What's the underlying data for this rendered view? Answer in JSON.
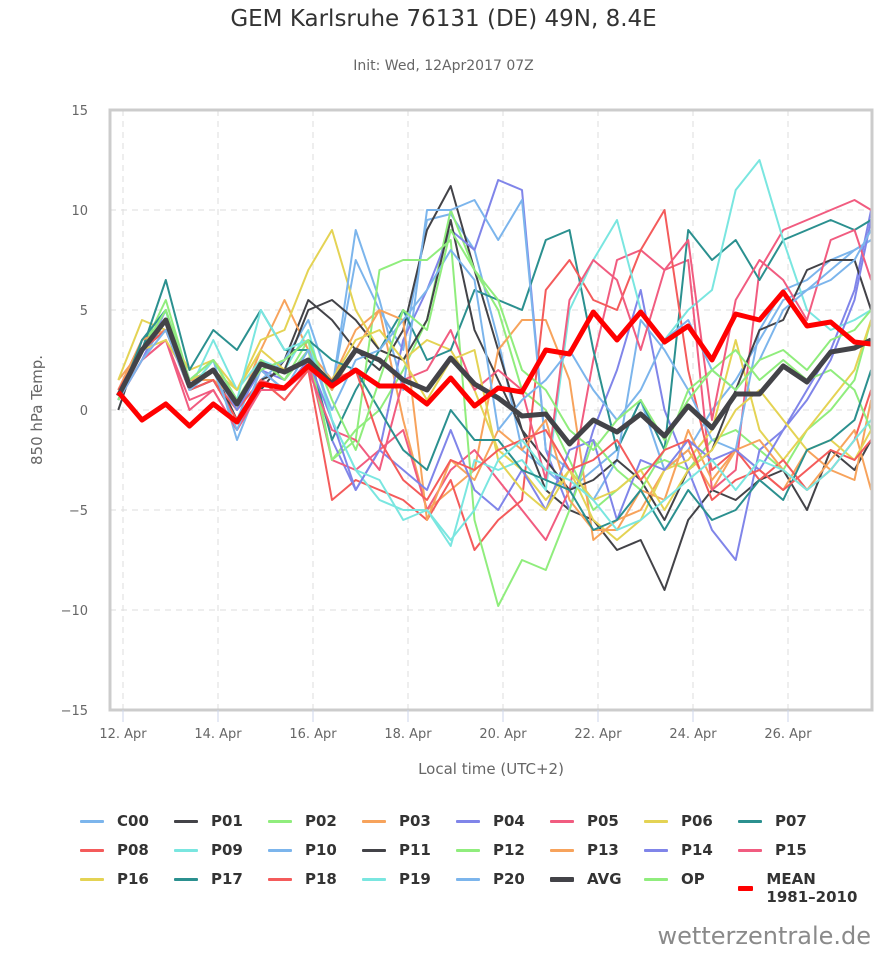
{
  "page": {
    "title": "GEM Karlsruhe 76131 (DE) 49N, 8.4E",
    "subtitle": "Init: Wed, 12Apr2017 07Z",
    "credit": "wetterzentrale.de"
  },
  "chart_data": {
    "type": "line",
    "title": "GEM Karlsruhe 76131 (DE) 49N, 8.4E",
    "subtitle": "Init: Wed, 12Apr2017 07Z",
    "xlabel": "Local time (UTC+2)",
    "ylabel": "850 hPa Temp.",
    "ylim": [
      -15,
      15
    ],
    "xlim_days_april": [
      11.7,
      27.85
    ],
    "grid": true,
    "legend_position": "bottom",
    "yticks": [
      15,
      10,
      5,
      0,
      -5,
      -10,
      -15
    ],
    "ytick_labels": [
      "15",
      "10",
      "5",
      "0",
      "−5",
      "−10",
      "−15"
    ],
    "xticks": [
      12,
      14,
      16,
      18,
      20,
      22,
      24,
      26
    ],
    "xtick_labels": [
      "12. Apr",
      "14. Apr",
      "16. Apr",
      "18. Apr",
      "20. Apr",
      "22. Apr",
      "24. Apr",
      "26. Apr"
    ],
    "x_days": [
      11.9,
      12.4,
      12.9,
      13.4,
      13.9,
      14.4,
      14.9,
      15.4,
      15.9,
      16.4,
      16.9,
      17.4,
      17.9,
      18.4,
      18.9,
      19.4,
      19.9,
      20.4,
      20.9,
      21.4,
      21.9,
      22.4,
      22.9,
      23.4,
      23.9,
      24.4,
      24.9,
      25.4,
      25.9,
      26.4,
      26.9,
      27.4,
      27.75
    ],
    "series": [
      {
        "name": "C00",
        "color": "#7cb5ec",
        "width": 2,
        "values": [
          0.5,
          3.0,
          4.0,
          1.5,
          2.0,
          -0.5,
          2.5,
          1.5,
          3.0,
          1.0,
          7.5,
          5.0,
          3.0,
          9.5,
          9.8,
          8.0,
          3.5,
          -2.0,
          -3.0,
          -4.0,
          -3.0,
          -2.0,
          0.5,
          -3.0,
          -2.0,
          0.0,
          1.5,
          3.5,
          5.5,
          6.0,
          7.0,
          8.0,
          8.5
        ]
      },
      {
        "name": "P01",
        "color": "#434348",
        "width": 2,
        "values": [
          0.0,
          3.5,
          4.5,
          1.5,
          2.0,
          -0.5,
          1.0,
          2.5,
          5.5,
          4.5,
          3.0,
          2.0,
          4.0,
          9.0,
          11.2,
          7.0,
          3.0,
          -1.0,
          -4.0,
          -5.0,
          -5.5,
          -7.0,
          -6.5,
          -9.0,
          -5.5,
          -4.0,
          -4.5,
          -3.5,
          -3.0,
          -5.0,
          -2.0,
          -3.0,
          -1.5
        ]
      },
      {
        "name": "P02",
        "color": "#90ed7d",
        "width": 2,
        "values": [
          0.5,
          3.0,
          5.5,
          1.5,
          2.5,
          0.5,
          2.5,
          1.5,
          3.5,
          -2.5,
          -1.0,
          0.0,
          2.0,
          4.5,
          10.0,
          7.0,
          5.0,
          1.0,
          0.0,
          -2.5,
          -5.0,
          -4.0,
          -3.0,
          -2.5,
          -3.0,
          -1.5,
          -1.0,
          -2.0,
          -3.0,
          -1.0,
          0.0,
          1.5,
          4.5
        ]
      },
      {
        "name": "P03",
        "color": "#f7a35c",
        "width": 2,
        "values": [
          1.5,
          3.0,
          4.0,
          1.5,
          2.0,
          0.0,
          3.0,
          5.5,
          3.0,
          1.5,
          4.0,
          5.0,
          -0.5,
          -5.0,
          -4.0,
          -3.0,
          3.0,
          4.5,
          4.5,
          1.5,
          -6.5,
          -5.5,
          -5.0,
          -3.0,
          -2.0,
          -4.0,
          -2.0,
          -3.0,
          -4.0,
          -2.0,
          -3.0,
          -3.5,
          0.5
        ]
      },
      {
        "name": "P04",
        "color": "#8085e9",
        "width": 2,
        "values": [
          0.5,
          3.5,
          5.0,
          1.5,
          2.0,
          0.5,
          2.0,
          1.5,
          3.0,
          -1.5,
          -4.0,
          -2.0,
          3.5,
          6.0,
          9.0,
          8.0,
          11.5,
          11.0,
          -2.0,
          -5.0,
          -1.0,
          2.0,
          6.0,
          0.0,
          -3.0,
          -6.0,
          -7.5,
          -2.0,
          -1.0,
          1.0,
          3.0,
          6.0,
          10.0
        ]
      },
      {
        "name": "P05",
        "color": "#f15c80",
        "width": 2,
        "values": [
          0.5,
          2.5,
          3.5,
          0.0,
          1.0,
          -1.0,
          1.5,
          1.0,
          2.5,
          -2.5,
          -3.0,
          -2.0,
          -1.0,
          -5.0,
          -3.0,
          -2.0,
          -3.5,
          -5.0,
          -6.5,
          -4.0,
          2.5,
          7.5,
          8.0,
          7.0,
          7.5,
          -4.0,
          -3.0,
          7.0,
          9.0,
          9.5,
          10.0,
          10.5,
          10.0
        ]
      },
      {
        "name": "P06",
        "color": "#e4d354",
        "width": 2,
        "values": [
          1.5,
          4.5,
          4.0,
          2.0,
          2.5,
          1.0,
          3.5,
          4.0,
          7.0,
          9.0,
          5.0,
          3.0,
          2.5,
          3.5,
          3.0,
          1.0,
          -2.0,
          -3.0,
          -4.5,
          -3.0,
          -5.5,
          -6.5,
          -5.5,
          -3.0,
          -2.5,
          -1.0,
          3.5,
          -1.0,
          -2.5,
          -1.0,
          0.5,
          2.0,
          4.5
        ]
      },
      {
        "name": "P07",
        "color": "#2b908f",
        "width": 2,
        "values": [
          0.5,
          3.0,
          6.5,
          2.0,
          4.0,
          3.0,
          5.0,
          3.0,
          3.0,
          -1.5,
          1.0,
          3.0,
          5.0,
          2.5,
          3.0,
          6.0,
          5.5,
          5.0,
          8.5,
          9.0,
          3.0,
          -2.0,
          0.5,
          -2.0,
          9.0,
          7.5,
          8.5,
          6.5,
          8.5,
          9.0,
          9.5,
          9.0,
          9.5
        ]
      },
      {
        "name": "P08",
        "color": "#f45b5b",
        "width": 2,
        "values": [
          1.0,
          3.5,
          4.0,
          1.0,
          1.5,
          0.0,
          1.5,
          0.5,
          2.0,
          -4.5,
          -3.5,
          -4.0,
          -4.5,
          -5.5,
          -3.5,
          -7.0,
          -5.5,
          -4.5,
          6.0,
          7.5,
          5.5,
          5.0,
          8.0,
          10.0,
          2.0,
          -3.0,
          -2.0,
          -3.5,
          -2.5,
          -4.0,
          -3.0,
          -1.5,
          1.0
        ]
      },
      {
        "name": "P09",
        "color": "#7ae6e0",
        "width": 2,
        "values": [
          0.5,
          3.0,
          4.5,
          1.0,
          3.5,
          1.0,
          2.5,
          2.0,
          4.0,
          -0.5,
          -3.0,
          -4.5,
          -5.0,
          -5.0,
          -6.8,
          -2.5,
          -3.0,
          -2.5,
          -4.0,
          5.0,
          7.5,
          9.5,
          5.0,
          3.5,
          5.0,
          6.0,
          11.0,
          12.5,
          8.5,
          5.0,
          4.0,
          4.5,
          5.0
        ]
      },
      {
        "name": "P10",
        "color": "#7cb5ec",
        "width": 2,
        "values": [
          0.5,
          2.5,
          4.5,
          1.5,
          2.5,
          -1.5,
          1.5,
          2.5,
          4.5,
          1.0,
          9.0,
          5.5,
          1.0,
          10.0,
          10.0,
          10.5,
          8.5,
          10.5,
          -2.0,
          -3.0,
          -4.5,
          -2.5,
          4.5,
          3.0,
          1.0,
          -1.5,
          -2.0,
          4.0,
          6.0,
          6.5,
          7.5,
          8.0,
          8.5
        ]
      },
      {
        "name": "P11",
        "color": "#434348",
        "width": 2,
        "values": [
          0.5,
          3.0,
          4.0,
          1.0,
          1.5,
          -0.5,
          1.5,
          2.0,
          5.0,
          5.5,
          4.5,
          3.0,
          2.5,
          4.5,
          9.5,
          4.0,
          1.5,
          -1.0,
          -2.5,
          -4.0,
          -3.5,
          -2.5,
          -3.5,
          -5.5,
          -3.0,
          -2.0,
          1.0,
          4.0,
          4.5,
          7.0,
          7.5,
          7.5,
          5.0
        ]
      },
      {
        "name": "P12",
        "color": "#90ed7d",
        "width": 2,
        "values": [
          0.5,
          3.0,
          4.5,
          1.0,
          2.0,
          0.0,
          2.5,
          1.5,
          3.0,
          -2.5,
          -1.5,
          7.0,
          7.5,
          7.5,
          8.5,
          -5.5,
          -9.8,
          -7.5,
          -8.0,
          -5.0,
          -1.5,
          -3.0,
          -4.0,
          -2.0,
          1.0,
          2.0,
          3.0,
          1.5,
          2.5,
          1.5,
          2.0,
          1.0,
          -1.0
        ]
      },
      {
        "name": "P13",
        "color": "#f7a35c",
        "width": 2,
        "values": [
          1.0,
          3.5,
          4.0,
          1.5,
          1.5,
          0.5,
          2.0,
          1.0,
          2.5,
          1.0,
          3.0,
          5.0,
          4.5,
          -5.5,
          -2.5,
          -3.5,
          -1.0,
          -2.0,
          -0.5,
          -4.5,
          -6.0,
          -6.0,
          -4.0,
          -4.5,
          -1.0,
          -3.5,
          -2.0,
          -1.5,
          -3.0,
          -4.0,
          -2.5,
          -1.0,
          -4.0
        ]
      },
      {
        "name": "P14",
        "color": "#8085e9",
        "width": 2,
        "values": [
          0.5,
          2.5,
          5.0,
          1.0,
          2.0,
          0.0,
          2.0,
          1.0,
          2.5,
          -0.5,
          -4.0,
          -2.0,
          -3.0,
          -4.0,
          -1.0,
          -4.0,
          -5.0,
          -3.0,
          -5.0,
          -2.0,
          -1.5,
          -5.5,
          -2.5,
          -3.0,
          -1.5,
          -2.5,
          -2.0,
          -3.0,
          -1.0,
          0.5,
          2.5,
          5.5,
          9.5
        ]
      },
      {
        "name": "P15",
        "color": "#f15c80",
        "width": 2,
        "values": [
          0.5,
          2.5,
          3.5,
          0.5,
          1.0,
          -1.0,
          1.0,
          1.0,
          2.0,
          -1.0,
          -1.5,
          -3.0,
          1.5,
          2.0,
          4.0,
          1.0,
          2.0,
          1.0,
          -3.5,
          5.5,
          7.5,
          6.5,
          3.0,
          7.0,
          8.5,
          -0.5,
          5.5,
          7.5,
          6.5,
          4.5,
          8.5,
          9.0,
          6.5
        ]
      },
      {
        "name": "P16",
        "color": "#e4d354",
        "width": 2,
        "values": [
          1.0,
          3.0,
          3.5,
          1.5,
          2.0,
          1.0,
          3.0,
          2.0,
          2.5,
          1.5,
          3.5,
          4.0,
          2.5,
          0.5,
          2.5,
          3.0,
          -2.5,
          -4.0,
          -5.0,
          -3.0,
          -4.5,
          -4.0,
          -3.0,
          -5.0,
          -3.0,
          -2.0,
          0.0,
          1.0,
          -0.5,
          -2.0,
          -1.5,
          -2.5,
          -1.0
        ]
      },
      {
        "name": "P17",
        "color": "#2b908f",
        "width": 2,
        "values": [
          0.5,
          3.5,
          5.0,
          1.0,
          2.5,
          0.5,
          2.0,
          2.5,
          3.5,
          2.5,
          2.0,
          0.0,
          -2.0,
          -3.0,
          0.0,
          -1.5,
          -1.5,
          -3.0,
          -3.5,
          -4.0,
          -6.0,
          -5.5,
          -4.0,
          -6.0,
          -4.0,
          -5.5,
          -5.0,
          -3.5,
          -4.5,
          -2.0,
          -1.5,
          -0.5,
          2.0
        ]
      },
      {
        "name": "P18",
        "color": "#f45b5b",
        "width": 2,
        "values": [
          1.0,
          3.0,
          4.0,
          1.0,
          1.5,
          -0.5,
          1.5,
          0.5,
          2.0,
          1.5,
          2.0,
          -1.5,
          -3.5,
          -4.5,
          -2.5,
          -3.0,
          -2.0,
          -1.5,
          -1.0,
          -3.0,
          -2.5,
          -1.5,
          -3.5,
          -2.0,
          -1.5,
          -4.5,
          -3.5,
          -3.0,
          -4.0,
          -3.0,
          -2.0,
          -2.5,
          -1.5
        ]
      },
      {
        "name": "P19",
        "color": "#7ae6e0",
        "width": 2,
        "values": [
          0.5,
          3.0,
          5.0,
          1.0,
          2.5,
          0.5,
          5.0,
          3.0,
          3.5,
          -0.5,
          -3.0,
          -3.5,
          -5.5,
          -5.0,
          -6.5,
          -5.0,
          -2.5,
          -1.5,
          -3.0,
          -3.5,
          -4.5,
          -6.0,
          -5.5,
          -4.5,
          -3.5,
          -2.5,
          -4.0,
          -2.5,
          -3.0,
          -4.0,
          -3.0,
          -1.5,
          -0.5
        ]
      },
      {
        "name": "P20",
        "color": "#7cb5ec",
        "width": 2,
        "values": [
          0.5,
          2.5,
          4.0,
          1.0,
          2.0,
          -1.0,
          2.0,
          1.0,
          3.0,
          0.0,
          2.5,
          3.0,
          4.5,
          6.0,
          8.0,
          6.5,
          -1.0,
          0.5,
          1.5,
          3.0,
          1.0,
          -0.5,
          1.0,
          3.5,
          4.5,
          2.0,
          1.0,
          2.5,
          5.0,
          6.0,
          6.5,
          7.5,
          9.0
        ]
      },
      {
        "name": "AVG",
        "color": "#434348",
        "width": 5,
        "values": [
          0.7,
          3.0,
          4.5,
          1.2,
          2.0,
          0.3,
          2.3,
          1.9,
          2.5,
          1.3,
          3.0,
          2.5,
          1.5,
          1.0,
          2.6,
          1.3,
          0.6,
          -0.3,
          -0.2,
          -1.7,
          -0.5,
          -1.1,
          -0.2,
          -1.3,
          0.2,
          -0.9,
          0.8,
          0.8,
          2.2,
          1.4,
          2.9,
          3.1,
          3.5
        ]
      },
      {
        "name": "OP",
        "color": "#90ed7d",
        "width": 2,
        "values": [
          0.5,
          3.0,
          5.0,
          1.5,
          2.5,
          0.5,
          2.0,
          2.5,
          3.5,
          0.5,
          -2.0,
          1.5,
          5.0,
          4.0,
          9.0,
          7.0,
          5.5,
          2.0,
          1.0,
          -1.0,
          -2.0,
          -0.5,
          0.5,
          -1.5,
          0.5,
          2.0,
          1.0,
          2.5,
          3.0,
          2.0,
          3.5,
          4.0,
          5.0
        ]
      },
      {
        "name": "MEAN 1981-2010",
        "color": "#ff0000",
        "width": 5,
        "values": [
          0.9,
          -0.5,
          0.3,
          -0.8,
          0.3,
          -0.6,
          1.3,
          1.1,
          2.2,
          1.2,
          2.0,
          1.2,
          1.2,
          0.3,
          1.6,
          0.2,
          1.1,
          0.9,
          3.0,
          2.8,
          4.9,
          3.5,
          4.9,
          3.4,
          4.2,
          2.5,
          4.8,
          4.5,
          5.9,
          4.2,
          4.4,
          3.4,
          3.3
        ]
      }
    ],
    "legend": [
      {
        "label": "C00",
        "color": "#7cb5ec"
      },
      {
        "label": "P01",
        "color": "#434348"
      },
      {
        "label": "P02",
        "color": "#90ed7d"
      },
      {
        "label": "P03",
        "color": "#f7a35c"
      },
      {
        "label": "P04",
        "color": "#8085e9"
      },
      {
        "label": "P05",
        "color": "#f15c80"
      },
      {
        "label": "P06",
        "color": "#e4d354"
      },
      {
        "label": "P07",
        "color": "#2b908f"
      },
      {
        "label": "P08",
        "color": "#f45b5b"
      },
      {
        "label": "P09",
        "color": "#7ae6e0"
      },
      {
        "label": "P10",
        "color": "#7cb5ec"
      },
      {
        "label": "P11",
        "color": "#434348"
      },
      {
        "label": "P12",
        "color": "#90ed7d"
      },
      {
        "label": "P13",
        "color": "#f7a35c"
      },
      {
        "label": "P14",
        "color": "#8085e9"
      },
      {
        "label": "P15",
        "color": "#f15c80"
      },
      {
        "label": "P16",
        "color": "#e4d354"
      },
      {
        "label": "P17",
        "color": "#2b908f"
      },
      {
        "label": "P18",
        "color": "#f45b5b"
      },
      {
        "label": "P19",
        "color": "#7ae6e0"
      },
      {
        "label": "P20",
        "color": "#7cb5ec"
      },
      {
        "label": "AVG",
        "color": "#434348",
        "thick": true
      },
      {
        "label": "OP",
        "color": "#90ed7d"
      },
      {
        "label": "MEAN 1981–2010",
        "color": "#ff0000",
        "thick": true
      }
    ]
  }
}
